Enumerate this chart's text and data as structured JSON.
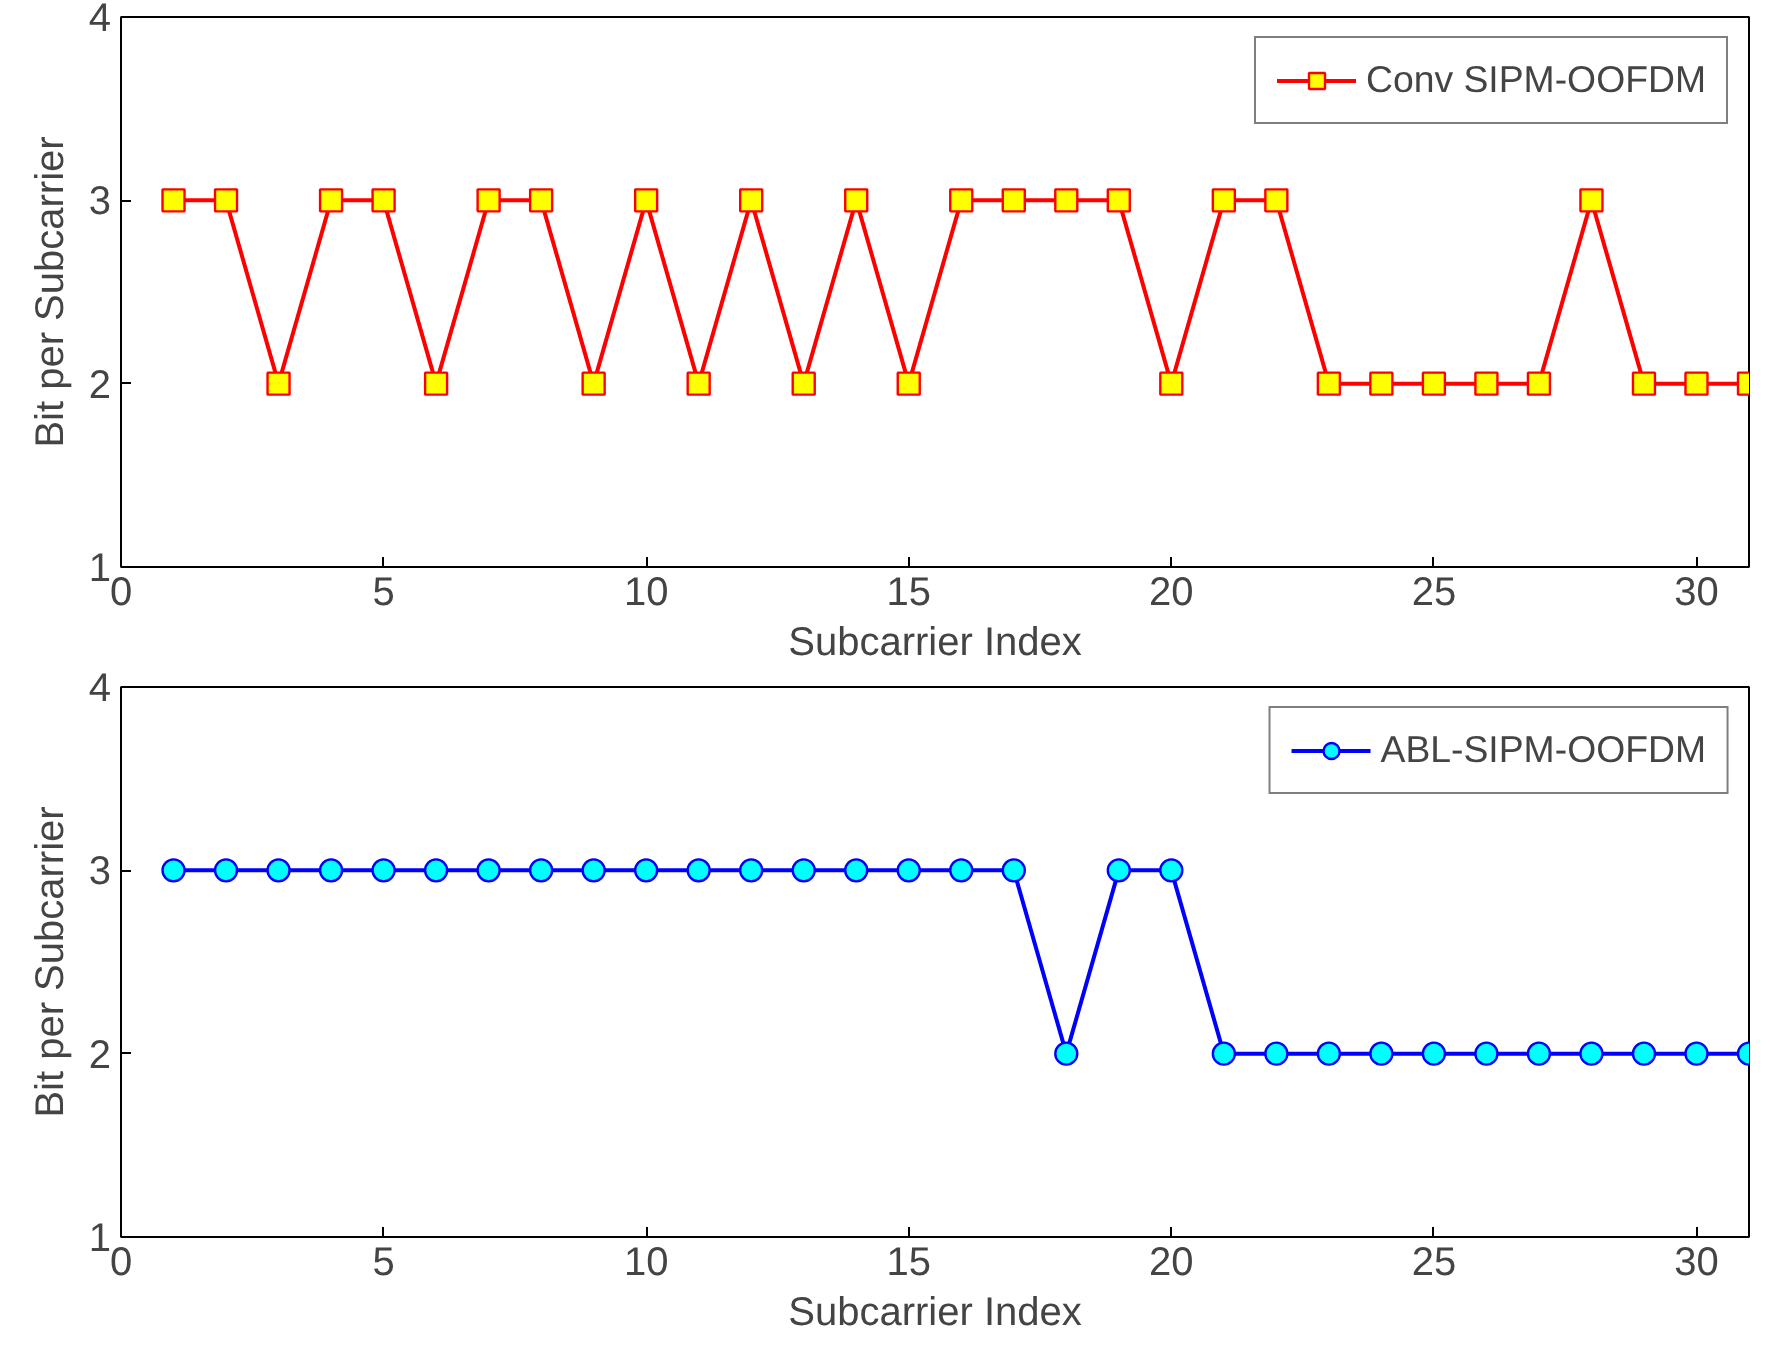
{
  "chart_data": [
    {
      "type": "line",
      "xlabel": "Subcarrier Index",
      "ylabel": "Bit per Subcarrier",
      "x": [
        1,
        2,
        3,
        4,
        5,
        6,
        7,
        8,
        9,
        10,
        11,
        12,
        13,
        14,
        15,
        16,
        17,
        18,
        19,
        20,
        21,
        22,
        23,
        24,
        25,
        26,
        27,
        28,
        29,
        30,
        31
      ],
      "series": [
        {
          "name": "Conv SIPM-OOFDM",
          "color": "#ff0000",
          "values": [
            3,
            3,
            2,
            3,
            3,
            2,
            3,
            3,
            2,
            3,
            2,
            3,
            2,
            3,
            2,
            3,
            3,
            3,
            3,
            2,
            3,
            3,
            2,
            2,
            2,
            2,
            2,
            3,
            2,
            2,
            2
          ]
        }
      ],
      "xlim": [
        0,
        31
      ],
      "ylim": [
        1,
        4
      ],
      "xticks": [
        0,
        5,
        10,
        15,
        20,
        25,
        30
      ],
      "yticks": [
        1,
        2,
        3,
        4
      ],
      "legend": "top right",
      "marker": "square",
      "line_style": "solid"
    },
    {
      "type": "line",
      "xlabel": "Subcarrier Index",
      "ylabel": "Bit per Subcarrier",
      "x": [
        1,
        2,
        3,
        4,
        5,
        6,
        7,
        8,
        9,
        10,
        11,
        12,
        13,
        14,
        15,
        16,
        17,
        18,
        19,
        20,
        21,
        22,
        23,
        24,
        25,
        26,
        27,
        28,
        29,
        30,
        31
      ],
      "series": [
        {
          "name": "ABL-SIPM-OOFDM",
          "color": "#0000ff",
          "values": [
            3,
            3,
            3,
            3,
            3,
            3,
            3,
            3,
            3,
            3,
            3,
            3,
            3,
            3,
            3,
            3,
            3,
            2,
            3,
            3,
            2,
            2,
            2,
            2,
            2,
            2,
            2,
            2,
            2,
            2,
            2
          ]
        }
      ],
      "xlim": [
        0,
        31
      ],
      "ylim": [
        1,
        4
      ],
      "xticks": [
        0,
        5,
        10,
        15,
        20,
        25,
        30
      ],
      "yticks": [
        1,
        2,
        3,
        4
      ],
      "legend": "top right",
      "marker": "circle",
      "line_style": "solid"
    }
  ]
}
